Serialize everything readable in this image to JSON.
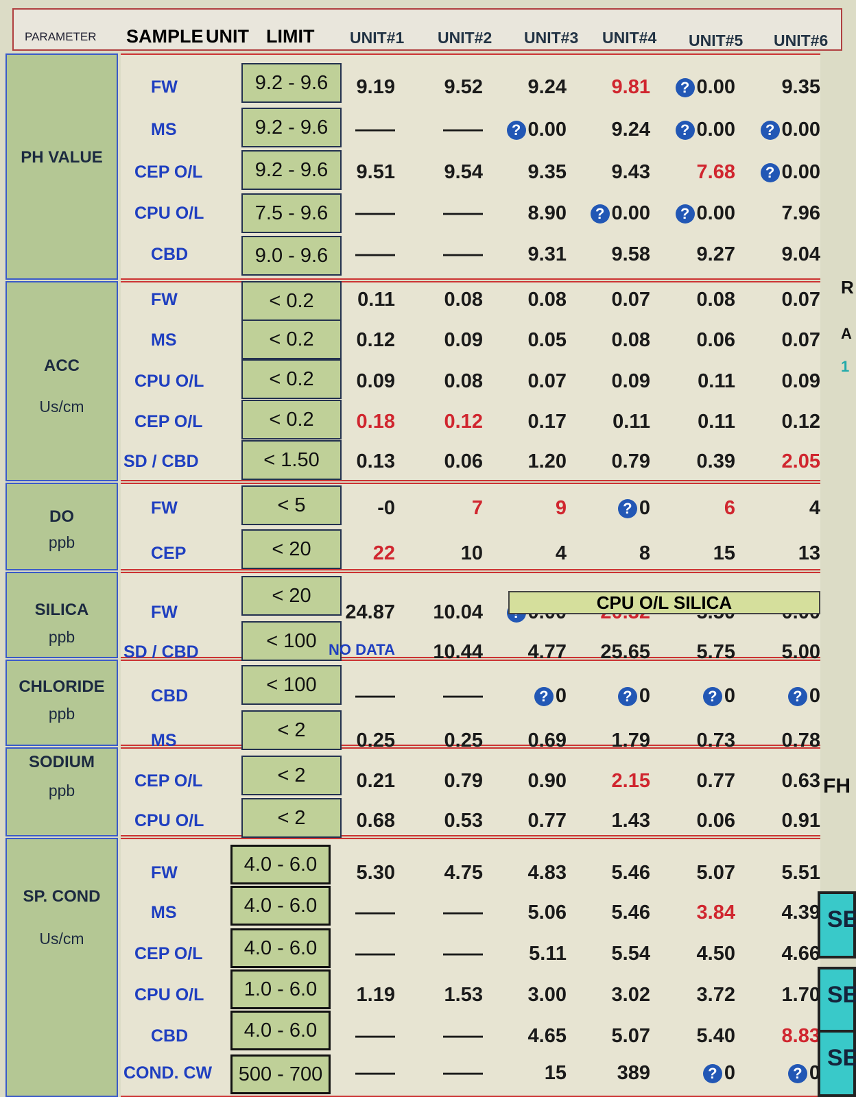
{
  "header": {
    "parameter": "PARAMETER",
    "sample": "SAMPLE",
    "unit": "UNIT",
    "limit": "LIMIT",
    "units": [
      "UNIT#1",
      "UNIT#2",
      "UNIT#3",
      "UNIT#4",
      "UNIT#5",
      "UNIT#6"
    ]
  },
  "groups": [
    {
      "name": "PH VALUE",
      "unit": ""
    },
    {
      "name": "ACC",
      "unit": "Us/cm"
    },
    {
      "name": "DO",
      "unit": "ppb"
    },
    {
      "name": "SILICA",
      "unit": "ppb"
    },
    {
      "name": "CHLORIDE",
      "unit": "ppb"
    },
    {
      "name": "SODIUM",
      "unit": "ppb"
    },
    {
      "name": "SP. COND",
      "unit": "Us/cm"
    }
  ],
  "rows": [
    {
      "sample": "FW",
      "limit": "9.2 - 9.6",
      "values": [
        {
          "t": "9.19"
        },
        {
          "t": "9.52"
        },
        {
          "t": "9.24"
        },
        {
          "t": "9.81",
          "red": true
        },
        {
          "t": "0.00",
          "q": true
        },
        {
          "t": "9.35"
        }
      ]
    },
    {
      "sample": "MS",
      "limit": "9.2 - 9.6",
      "values": [
        {
          "t": "——"
        },
        {
          "t": "——"
        },
        {
          "t": "0.00",
          "q": true
        },
        {
          "t": "9.24"
        },
        {
          "t": "0.00",
          "q": true
        },
        {
          "t": "0.00",
          "q": true
        }
      ]
    },
    {
      "sample": "CEP O/L",
      "limit": "9.2 - 9.6",
      "values": [
        {
          "t": "9.51"
        },
        {
          "t": "9.54"
        },
        {
          "t": "9.35"
        },
        {
          "t": "9.43"
        },
        {
          "t": "7.68",
          "red": true
        },
        {
          "t": "0.00",
          "q": true
        }
      ]
    },
    {
      "sample": "CPU O/L",
      "limit": "7.5 - 9.6",
      "values": [
        {
          "t": "——"
        },
        {
          "t": "——"
        },
        {
          "t": "8.90"
        },
        {
          "t": "0.00",
          "q": true
        },
        {
          "t": "0.00",
          "q": true
        },
        {
          "t": "7.96"
        }
      ]
    },
    {
      "sample": "CBD",
      "limit": "9.0 - 9.6",
      "values": [
        {
          "t": "——"
        },
        {
          "t": "——"
        },
        {
          "t": "9.31"
        },
        {
          "t": "9.58"
        },
        {
          "t": "9.27"
        },
        {
          "t": "9.04"
        }
      ]
    },
    {
      "sample": "FW",
      "limit": "< 0.2",
      "values": [
        {
          "t": "0.11"
        },
        {
          "t": "0.08"
        },
        {
          "t": "0.08"
        },
        {
          "t": "0.07"
        },
        {
          "t": "0.08"
        },
        {
          "t": "0.07"
        }
      ]
    },
    {
      "sample": "MS",
      "limit": "< 0.2",
      "values": [
        {
          "t": "0.12"
        },
        {
          "t": "0.09"
        },
        {
          "t": "0.05"
        },
        {
          "t": "0.08"
        },
        {
          "t": "0.06"
        },
        {
          "t": "0.07"
        }
      ]
    },
    {
      "sample": "CPU O/L",
      "limit": "< 0.2",
      "values": [
        {
          "t": "0.09"
        },
        {
          "t": "0.08"
        },
        {
          "t": "0.07"
        },
        {
          "t": "0.09"
        },
        {
          "t": "0.11"
        },
        {
          "t": "0.09"
        }
      ]
    },
    {
      "sample": "CEP O/L",
      "limit": "< 0.2",
      "values": [
        {
          "t": "0.18",
          "red": true
        },
        {
          "t": "0.12",
          "red": true
        },
        {
          "t": "0.17"
        },
        {
          "t": "0.11"
        },
        {
          "t": "0.11"
        },
        {
          "t": "0.12"
        }
      ]
    },
    {
      "sample": "SD / CBD",
      "limit": "< 1.50",
      "values": [
        {
          "t": "0.13"
        },
        {
          "t": "0.06"
        },
        {
          "t": "1.20"
        },
        {
          "t": "0.79"
        },
        {
          "t": "0.39"
        },
        {
          "t": "2.05",
          "red": true
        }
      ]
    },
    {
      "sample": "FW",
      "limit": "< 5",
      "values": [
        {
          "t": "-0"
        },
        {
          "t": "7",
          "red": true
        },
        {
          "t": "9",
          "red": true
        },
        {
          "t": "0",
          "q": true
        },
        {
          "t": "6",
          "red": true
        },
        {
          "t": "4"
        }
      ]
    },
    {
      "sample": "CEP",
      "limit": "< 20",
      "values": [
        {
          "t": "22",
          "red": true
        },
        {
          "t": "10"
        },
        {
          "t": "4"
        },
        {
          "t": "8"
        },
        {
          "t": "15"
        },
        {
          "t": "13"
        }
      ]
    },
    {
      "sample": "FW",
      "limit": "< 20",
      "values": [
        {
          "t": "24.87"
        },
        {
          "t": "10.04"
        },
        {
          "t": "0.00",
          "q": true
        },
        {
          "t": "20.32",
          "red": true
        },
        {
          "t": "5.50"
        },
        {
          "t": "0.00"
        }
      ]
    },
    {
      "sample": "SD / CBD",
      "limit": "< 100",
      "values": [
        {
          "t": "NO DATA"
        },
        {
          "t": "10.44"
        },
        {
          "t": "4.77"
        },
        {
          "t": "25.65"
        },
        {
          "t": "5.75"
        },
        {
          "t": "5.00"
        }
      ]
    },
    {
      "sample": "CBD",
      "limit": "< 100",
      "values": [
        {
          "t": "——"
        },
        {
          "t": "——"
        },
        {
          "t": "0",
          "q": true
        },
        {
          "t": "0",
          "q": true
        },
        {
          "t": "0",
          "q": true
        },
        {
          "t": "0",
          "q": true
        }
      ]
    },
    {
      "sample": "MS",
      "limit": "< 2",
      "values": [
        {
          "t": "0.25"
        },
        {
          "t": "0.25"
        },
        {
          "t": "0.69"
        },
        {
          "t": "1.79"
        },
        {
          "t": "0.73"
        },
        {
          "t": "0.78"
        }
      ]
    },
    {
      "sample": "CEP O/L",
      "limit": "< 2",
      "values": [
        {
          "t": "0.21"
        },
        {
          "t": "0.79"
        },
        {
          "t": "0.90"
        },
        {
          "t": "2.15",
          "red": true
        },
        {
          "t": "0.77"
        },
        {
          "t": "0.63"
        }
      ]
    },
    {
      "sample": "CPU O/L",
      "limit": "< 2",
      "values": [
        {
          "t": "0.68"
        },
        {
          "t": "0.53"
        },
        {
          "t": "0.77"
        },
        {
          "t": "1.43"
        },
        {
          "t": "0.06"
        },
        {
          "t": "0.91"
        }
      ]
    },
    {
      "sample": "FW",
      "limit": "4.0 - 6.0",
      "values": [
        {
          "t": "5.30"
        },
        {
          "t": "4.75"
        },
        {
          "t": "4.83"
        },
        {
          "t": "5.46"
        },
        {
          "t": "5.07"
        },
        {
          "t": "5.51"
        }
      ]
    },
    {
      "sample": "MS",
      "limit": "4.0 - 6.0",
      "values": [
        {
          "t": "——"
        },
        {
          "t": "——"
        },
        {
          "t": "5.06"
        },
        {
          "t": "5.46"
        },
        {
          "t": "3.84",
          "red": true
        },
        {
          "t": "4.39"
        }
      ]
    },
    {
      "sample": "CEP O/L",
      "limit": "4.0 - 6.0",
      "values": [
        {
          "t": "——"
        },
        {
          "t": "——"
        },
        {
          "t": "5.11"
        },
        {
          "t": "5.54"
        },
        {
          "t": "4.50"
        },
        {
          "t": "4.66"
        }
      ]
    },
    {
      "sample": "CPU O/L",
      "limit": "1.0 - 6.0",
      "values": [
        {
          "t": "1.19"
        },
        {
          "t": "1.53"
        },
        {
          "t": "3.00"
        },
        {
          "t": "3.02"
        },
        {
          "t": "3.72"
        },
        {
          "t": "1.70"
        }
      ]
    },
    {
      "sample": "CBD",
      "limit": "4.0 - 6.0",
      "values": [
        {
          "t": "——"
        },
        {
          "t": "——"
        },
        {
          "t": "4.65"
        },
        {
          "t": "5.07"
        },
        {
          "t": "5.40"
        },
        {
          "t": "8.83",
          "red": true
        }
      ]
    },
    {
      "sample": "COND. CW",
      "limit": "500 - 700",
      "values": [
        {
          "t": "——"
        },
        {
          "t": "——"
        },
        {
          "t": "15"
        },
        {
          "t": "389"
        },
        {
          "t": "0",
          "q": true
        },
        {
          "t": "0",
          "q": true
        }
      ]
    }
  ],
  "silica_bar": "CPU O/L SILICA",
  "side_buttons": [
    "SE",
    "SE",
    "SE"
  ],
  "side_labels": [
    "R",
    "A",
    "1",
    "FH"
  ],
  "colors": {
    "alarm": "#d0262f",
    "group_bg": "#b4c794",
    "limit_bg": "#bfd098",
    "sample_text": "#1f3fc0",
    "question_icon": "#2257b5",
    "side_button": "#39c9c9"
  }
}
